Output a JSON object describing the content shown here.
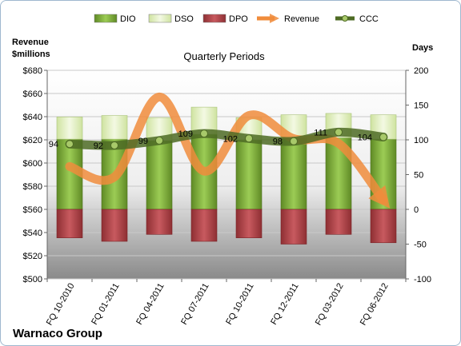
{
  "chart_data": {
    "type": "bar",
    "title": "Quarterly Periods",
    "company": "Warnaco Group",
    "left_axis_label": [
      "Revenue",
      "$millions"
    ],
    "right_axis_label": "Days",
    "categories": [
      "FQ 10-2010",
      "FQ 01-2011",
      "FQ 04-2011",
      "FQ 07-2011",
      "FQ 10-2011",
      "FQ 12-2011",
      "FQ 03-2012",
      "FQ 06-2012"
    ],
    "left_ylim": [
      500,
      680
    ],
    "left_ticks": [
      "$500",
      "$520",
      "$540",
      "$560",
      "$580",
      "$600",
      "$620",
      "$640",
      "$660",
      "$680"
    ],
    "right_ylim": [
      -100,
      200
    ],
    "right_ticks": [
      "-100",
      "-50",
      "0",
      "50",
      "100",
      "150",
      "200"
    ],
    "grid": true,
    "legend_position": "top",
    "series": [
      {
        "name": "DIO",
        "kind": "bar",
        "axis": "right",
        "color": "#7aa33a",
        "values": [
          101,
          101,
          99,
          108,
          100,
          102,
          103,
          101
        ]
      },
      {
        "name": "DSO",
        "kind": "bar",
        "axis": "right",
        "color": "#e3efc4",
        "values": [
          32,
          34,
          33,
          39,
          32,
          34,
          35,
          35
        ]
      },
      {
        "name": "DPO",
        "kind": "bar",
        "axis": "right",
        "color": "#b5454a",
        "values": [
          -41,
          -46,
          -36,
          -46,
          -41,
          -50,
          -36,
          -48
        ]
      },
      {
        "name": "Revenue",
        "kind": "line",
        "axis": "left",
        "color": "#f08c3c",
        "values": [
          597,
          588,
          657,
          593,
          641,
          621,
          617,
          568
        ]
      },
      {
        "name": "CCC",
        "kind": "line",
        "axis": "right",
        "color": "#5e7a2e",
        "values": [
          94,
          92,
          99,
          109,
          102,
          98,
          111,
          104
        ]
      }
    ],
    "ccc_labels": [
      "94",
      "92",
      "99",
      "109",
      "102",
      "98",
      "111",
      "104"
    ]
  }
}
